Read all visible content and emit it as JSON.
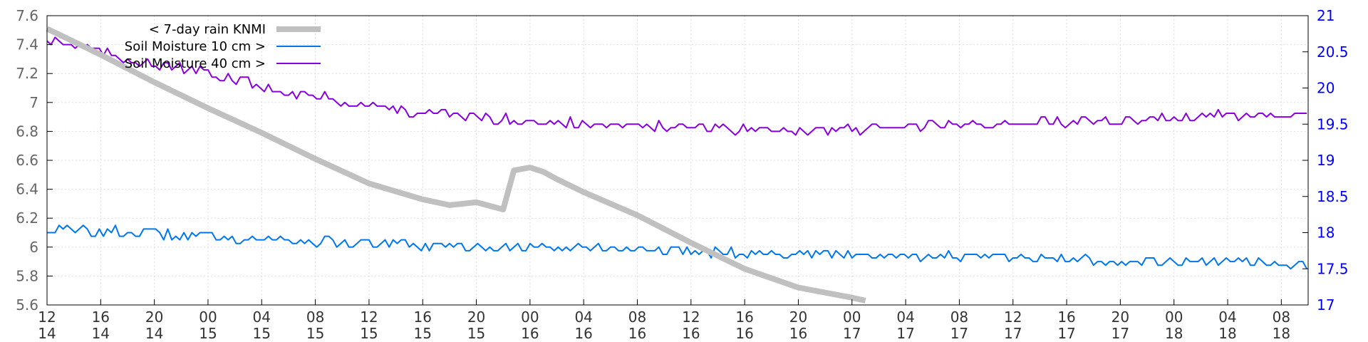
{
  "chart_data": {
    "type": "line",
    "title": "",
    "grid": true,
    "legend_placement": "top-left",
    "y_left": {
      "ylim": [
        5.6,
        7.6
      ],
      "ticks": [
        "5.6",
        "5.8",
        "6",
        "6.2",
        "6.4",
        "6.6",
        "6.8",
        "7",
        "7.2",
        "7.4",
        "7.6"
      ],
      "tick_values": [
        5.6,
        5.8,
        6.0,
        6.2,
        6.4,
        6.6,
        6.8,
        7.0,
        7.2,
        7.4,
        7.6
      ]
    },
    "y_right": {
      "ylim": [
        17,
        21
      ],
      "ticks": [
        "17",
        "17.5",
        "18",
        "18.5",
        "19",
        "19.5",
        "20",
        "20.5",
        "21"
      ],
      "tick_values": [
        17,
        17.5,
        18,
        18.5,
        19,
        19.5,
        20,
        20.5,
        21
      ],
      "color": "#0000ff"
    },
    "x_axis": {
      "unit": "hours",
      "xlim": [
        12,
        106
      ],
      "tick_hours": [
        12,
        16,
        20,
        24,
        28,
        32,
        36,
        40,
        44,
        48,
        52,
        56,
        60,
        64,
        68,
        72,
        76,
        80,
        84,
        88,
        92,
        96,
        100,
        104
      ],
      "tick_labels_hour": [
        "12",
        "16",
        "20",
        "00",
        "04",
        "08",
        "12",
        "16",
        "20",
        "00",
        "04",
        "08",
        "12",
        "16",
        "20",
        "00",
        "04",
        "08",
        "12",
        "16",
        "20",
        "00",
        "04",
        "08"
      ],
      "tick_labels_day": [
        "14",
        "14",
        "14",
        "15",
        "15",
        "15",
        "15",
        "15",
        "15",
        "16",
        "16",
        "16",
        "16",
        "16",
        "16",
        "17",
        "17",
        "17",
        "17",
        "17",
        "17",
        "18",
        "18",
        "18"
      ]
    },
    "series": [
      {
        "name": "< 7-day rain KNMI",
        "axis": "left",
        "color": "#c0c0c0",
        "line_width": 8,
        "x": [
          12,
          16,
          20,
          24,
          28,
          32,
          36,
          40,
          42,
          44,
          46,
          46.8,
          48,
          49,
          50,
          52,
          56,
          60,
          64,
          68,
          72,
          73
        ],
        "values": [
          7.51,
          7.33,
          7.14,
          6.96,
          6.79,
          6.61,
          6.44,
          6.33,
          6.29,
          6.31,
          6.26,
          6.53,
          6.55,
          6.52,
          6.47,
          6.38,
          6.22,
          6.03,
          5.85,
          5.72,
          5.65,
          5.63
        ]
      },
      {
        "name": "Soil Moisture 10 cm >",
        "axis": "right",
        "color": "#0077ee",
        "line_width": 2,
        "x": [
          12,
          18,
          24,
          30,
          36,
          42,
          48,
          54,
          60,
          66,
          72,
          78,
          84,
          90,
          96,
          102,
          106
        ],
        "values": [
          18.05,
          18.0,
          17.95,
          17.9,
          17.85,
          17.8,
          17.8,
          17.78,
          17.75,
          17.72,
          17.7,
          17.68,
          17.65,
          17.62,
          17.6,
          17.58,
          17.55
        ]
      },
      {
        "name": "Soil Moisture 40 cm >",
        "axis": "right",
        "color": "#8800dd",
        "line_width": 2,
        "x": [
          12,
          18,
          24,
          30,
          36,
          42,
          48,
          54,
          60,
          66,
          72,
          78,
          84,
          90,
          96,
          102,
          106
        ],
        "values": [
          20.7,
          20.4,
          20.2,
          19.95,
          19.75,
          19.62,
          19.55,
          19.48,
          19.45,
          19.42,
          19.43,
          19.47,
          19.52,
          19.55,
          19.6,
          19.62,
          19.58
        ]
      }
    ]
  }
}
